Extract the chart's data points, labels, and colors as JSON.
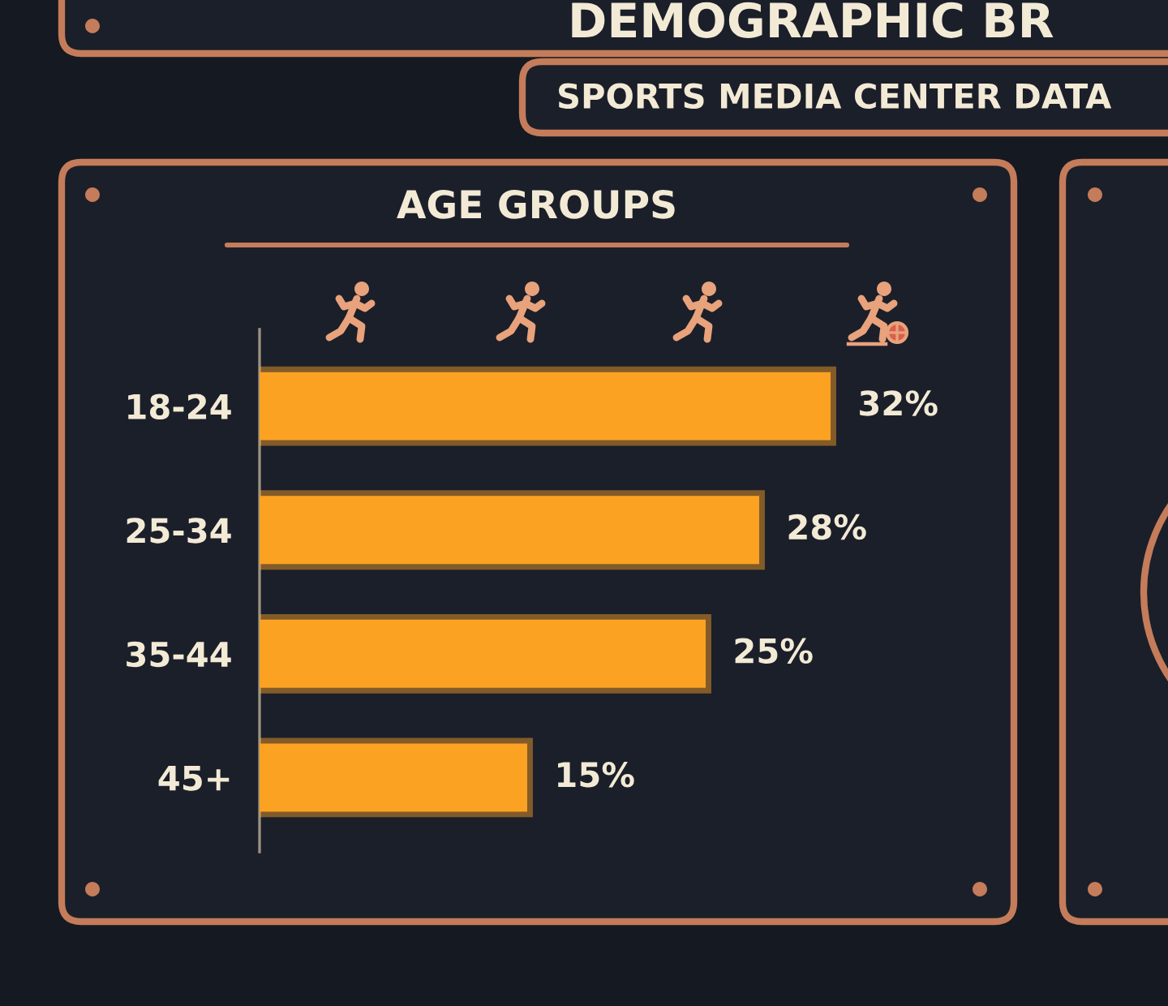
{
  "chart_data": {
    "type": "bar",
    "orientation": "horizontal",
    "title": "AGE GROUPS",
    "annotations": [
      "DEMOGRAPHIC BR",
      "SPORTS MEDIA CENTER DATA"
    ],
    "categories": [
      "18-24",
      "25-34",
      "35-44",
      "45+"
    ],
    "values": [
      32,
      28,
      25,
      15
    ],
    "value_labels": [
      "32%",
      "28%",
      "25%",
      "15%"
    ],
    "color": "#fca223",
    "tick_labels": "y"
  }
}
